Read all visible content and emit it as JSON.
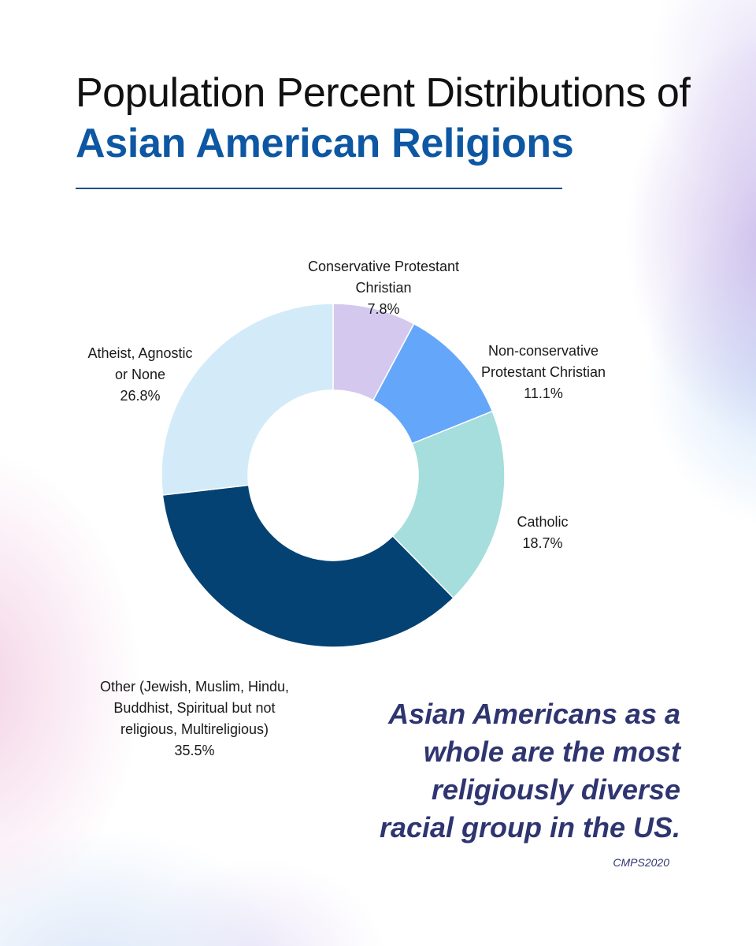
{
  "title": {
    "line1": "Population Percent Distributions of",
    "line2": "Asian American Religions"
  },
  "chart_data": {
    "type": "pie",
    "donut": true,
    "slices": [
      {
        "label": "Conservative Protestant\nChristian",
        "value": 7.8,
        "display": "7.8%",
        "color": "#d5c8ef"
      },
      {
        "label": "Non-conservative\nProtestant Christian",
        "value": 11.1,
        "display": "11.1%",
        "color": "#64a6fa"
      },
      {
        "label": "Catholic",
        "value": 18.7,
        "display": "18.7%",
        "color": "#a5dedc"
      },
      {
        "label": "Other (Jewish, Muslim, Hindu,\nBuddhist, Spiritual but not\nreligious, Multireligious)",
        "value": 35.5,
        "display": "35.5%",
        "color": "#034272"
      },
      {
        "label": "Atheist, Agnostic\nor None",
        "value": 26.8,
        "display": "26.8%",
        "color": "#d3ebf9"
      }
    ]
  },
  "tagline": "Asian Americans as a\nwhole are the most\nreligiously diverse\nracial group in the US.",
  "source": "CMPS2020"
}
